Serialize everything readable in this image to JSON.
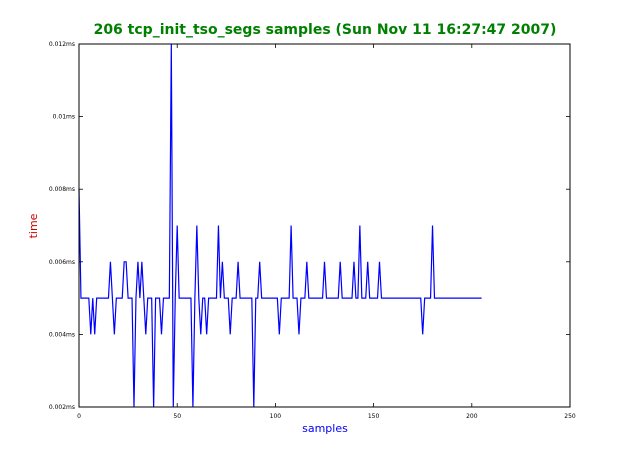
{
  "chart_data": {
    "type": "line",
    "title": "206 tcp_init_tso_segs samples (Sun Nov 11 16:27:47 2007)",
    "xlabel": "samples",
    "ylabel": "time",
    "xlim": [
      0,
      250
    ],
    "ylim": [
      0.002,
      0.012
    ],
    "x_ticks": [
      "0",
      "50",
      "100",
      "150",
      "200",
      "250"
    ],
    "y_ticks": [
      "0.002ms",
      "0.004ms",
      "0.006ms",
      "0.008ms",
      "0.01ms",
      "0.012ms"
    ],
    "grid": false,
    "colors": {
      "title": "#008000",
      "xlabel": "#0000ff",
      "ylabel": "#cc0000",
      "series": "#0000ff"
    },
    "series": [
      {
        "values": [
          0.008,
          0.005,
          0.005,
          0.005,
          0.005,
          0.005,
          0.004,
          0.005,
          0.004,
          0.005,
          0.005,
          0.005,
          0.005,
          0.005,
          0.005,
          0.005,
          0.006,
          0.005,
          0.004,
          0.005,
          0.005,
          0.005,
          0.005,
          0.006,
          0.006,
          0.005,
          0.005,
          0.005,
          0.002,
          0.005,
          0.006,
          0.005,
          0.006,
          0.005,
          0.004,
          0.005,
          0.005,
          0.005,
          0.002,
          0.005,
          0.005,
          0.005,
          0.004,
          0.005,
          0.005,
          0.005,
          0.005,
          0.012,
          0.002,
          0.005,
          0.007,
          0.005,
          0.005,
          0.005,
          0.005,
          0.005,
          0.005,
          0.005,
          0.002,
          0.005,
          0.007,
          0.005,
          0.004,
          0.005,
          0.005,
          0.004,
          0.005,
          0.005,
          0.005,
          0.005,
          0.005,
          0.007,
          0.005,
          0.006,
          0.005,
          0.005,
          0.005,
          0.004,
          0.005,
          0.005,
          0.005,
          0.006,
          0.005,
          0.005,
          0.005,
          0.005,
          0.005,
          0.005,
          0.005,
          0.002,
          0.005,
          0.005,
          0.006,
          0.005,
          0.005,
          0.005,
          0.005,
          0.005,
          0.005,
          0.005,
          0.005,
          0.005,
          0.004,
          0.005,
          0.005,
          0.005,
          0.005,
          0.005,
          0.007,
          0.005,
          0.005,
          0.005,
          0.004,
          0.005,
          0.005,
          0.005,
          0.006,
          0.005,
          0.005,
          0.005,
          0.005,
          0.005,
          0.005,
          0.005,
          0.005,
          0.006,
          0.005,
          0.005,
          0.005,
          0.005,
          0.005,
          0.005,
          0.005,
          0.006,
          0.005,
          0.005,
          0.005,
          0.005,
          0.005,
          0.005,
          0.006,
          0.005,
          0.005,
          0.007,
          0.005,
          0.005,
          0.005,
          0.006,
          0.005,
          0.005,
          0.005,
          0.005,
          0.005,
          0.006,
          0.005,
          0.005,
          0.005,
          0.005,
          0.005,
          0.005,
          0.005,
          0.005,
          0.005,
          0.005,
          0.005,
          0.005,
          0.005,
          0.005,
          0.005,
          0.005,
          0.005,
          0.005,
          0.005,
          0.005,
          0.005,
          0.004,
          0.005,
          0.005,
          0.005,
          0.005,
          0.007,
          0.005,
          0.005,
          0.005,
          0.005,
          0.005,
          0.005,
          0.005,
          0.005,
          0.005,
          0.005,
          0.005,
          0.005,
          0.005,
          0.005,
          0.005,
          0.005,
          0.005,
          0.005,
          0.005,
          0.005,
          0.005,
          0.005,
          0.005,
          0.005,
          0.005
        ]
      }
    ]
  }
}
